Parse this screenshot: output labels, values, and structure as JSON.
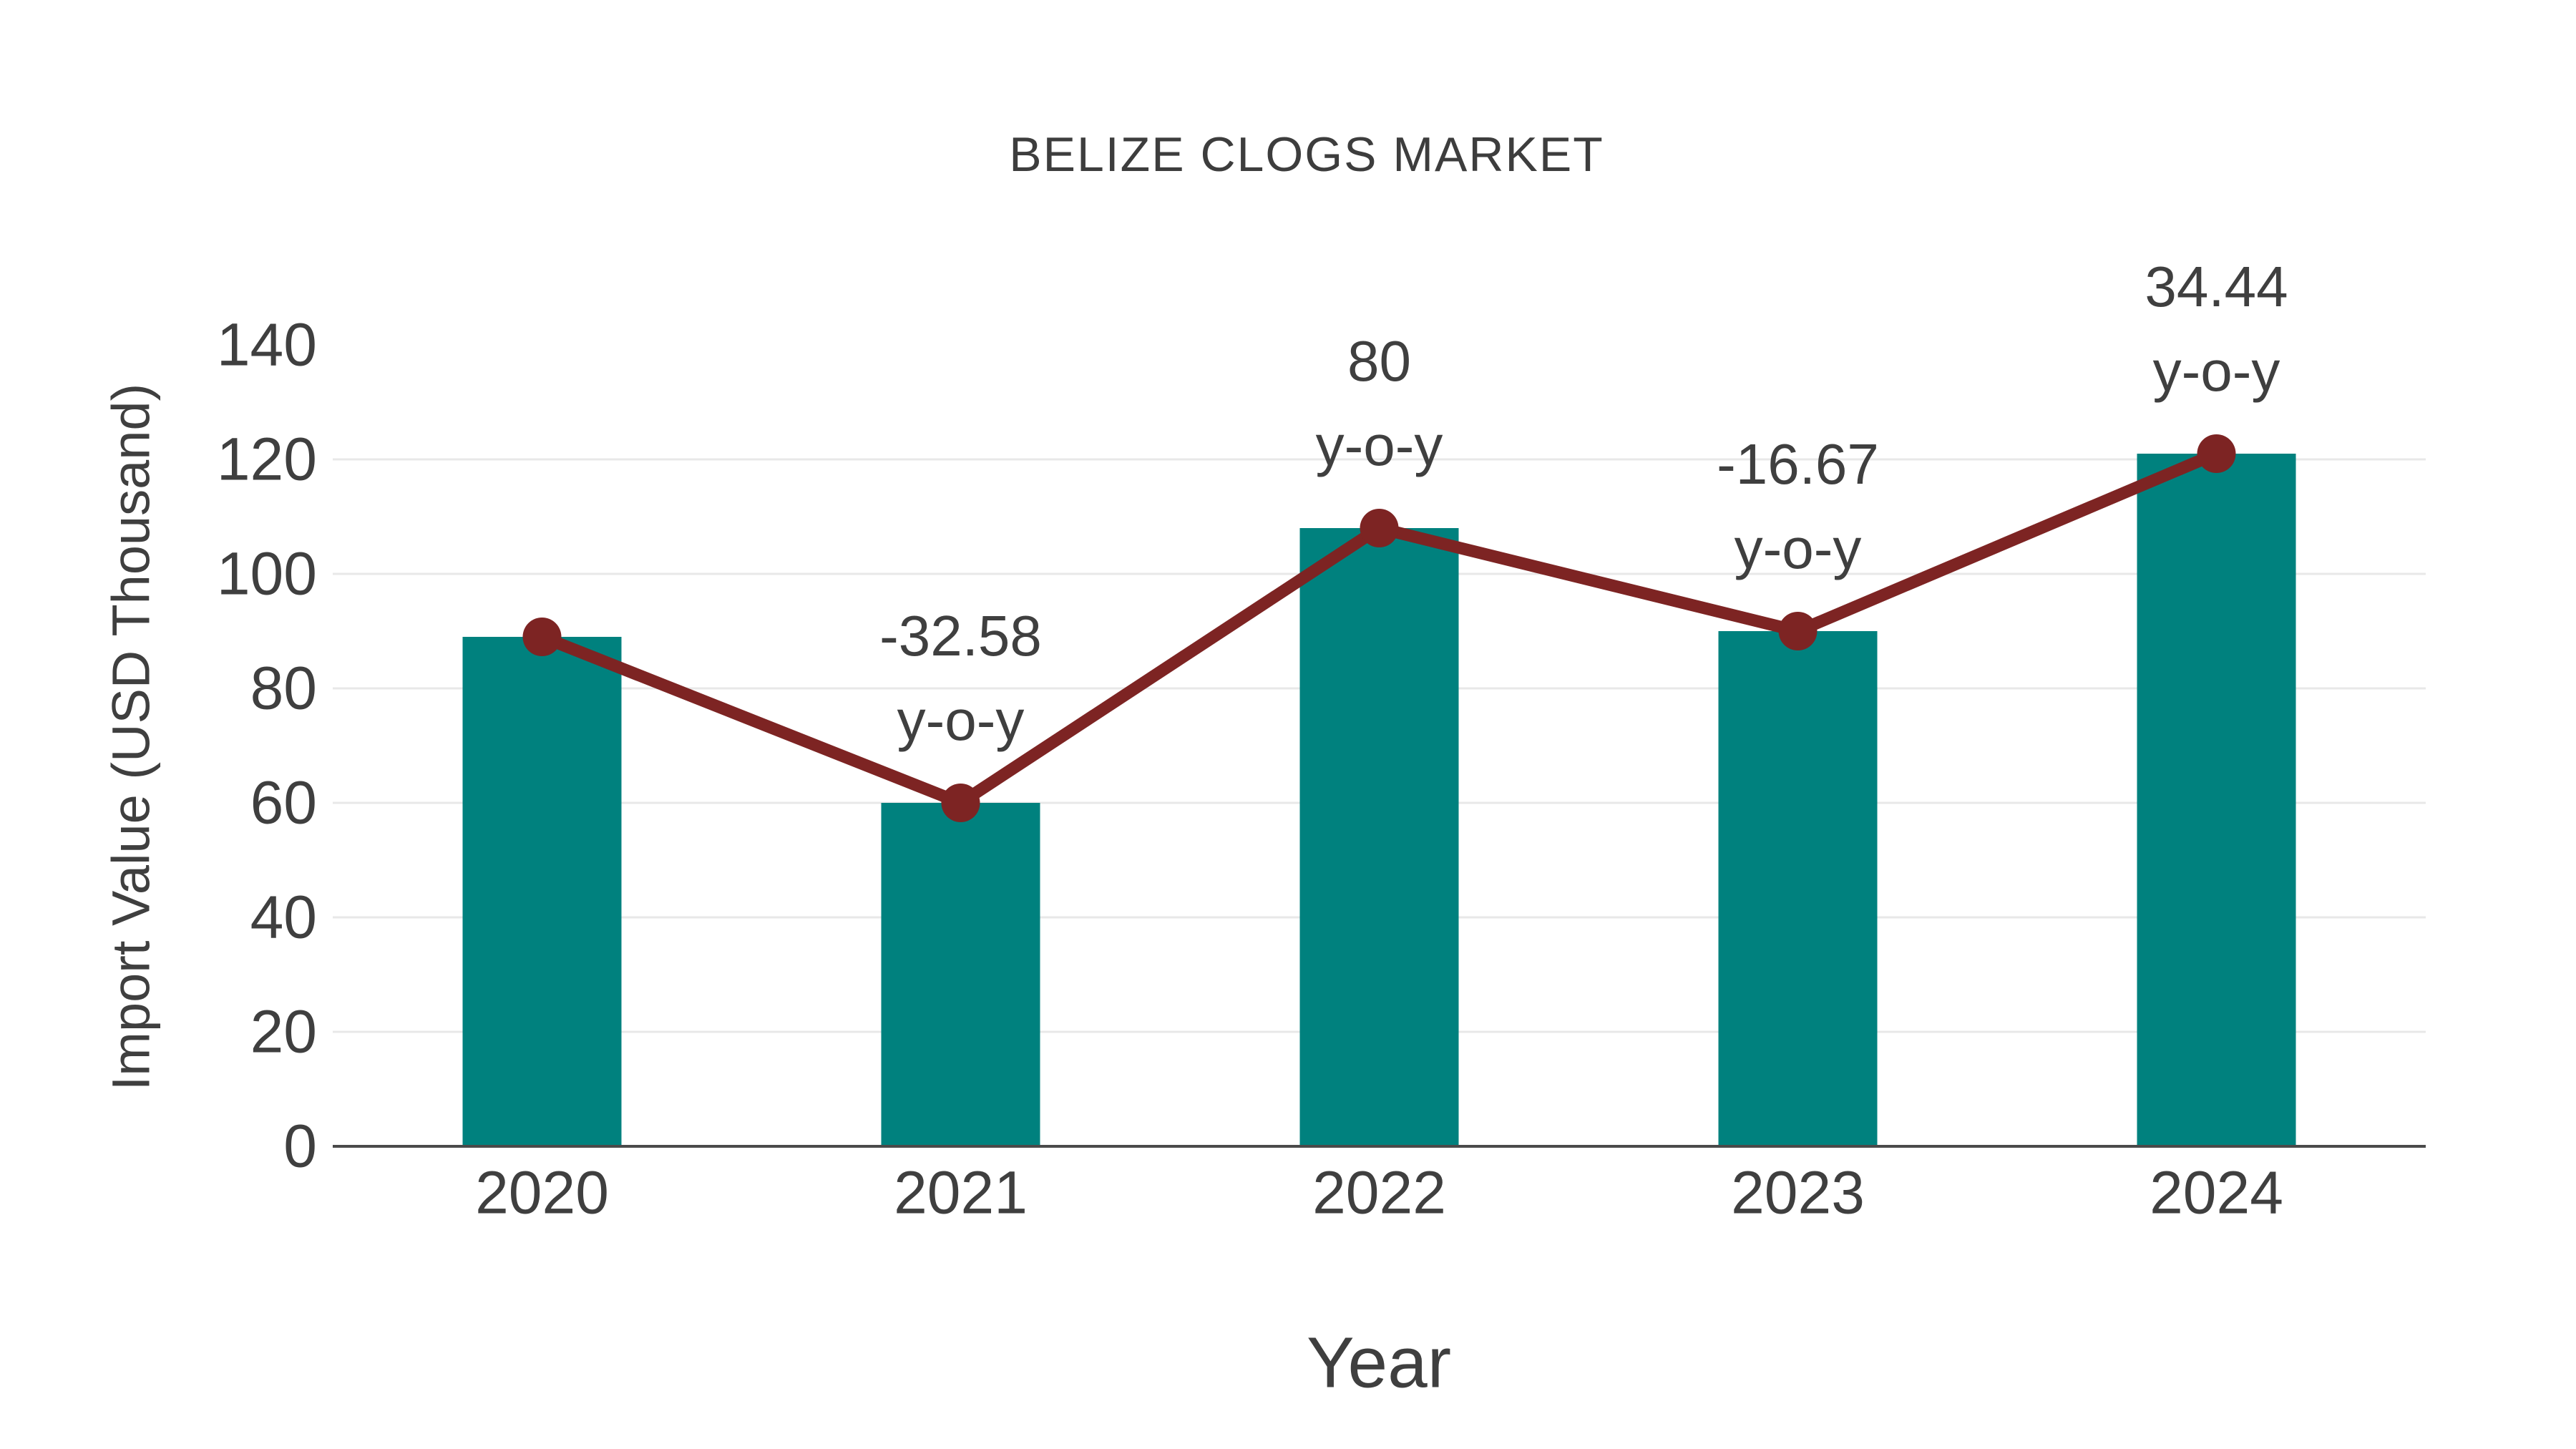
{
  "chart_data": {
    "type": "bar",
    "title": "BELIZE CLOGS MARKET",
    "xlabel": "Year",
    "ylabel": "Import Value (USD Thousand)",
    "categories": [
      "2020",
      "2021",
      "2022",
      "2023",
      "2024"
    ],
    "series": [
      {
        "name": "Import Value bars",
        "type": "bar",
        "color": "#00817E",
        "values": [
          89,
          60,
          108,
          90,
          121
        ]
      },
      {
        "name": "Import Value trend line",
        "type": "line",
        "color": "#7D2423",
        "values": [
          89,
          60,
          108,
          90,
          121
        ]
      }
    ],
    "annotations": [
      {
        "category": "2021",
        "lines": [
          "-32.58",
          "y-o-y"
        ]
      },
      {
        "category": "2022",
        "lines": [
          "80",
          "y-o-y"
        ]
      },
      {
        "category": "2023",
        "lines": [
          "-16.67",
          "y-o-y"
        ]
      },
      {
        "category": "2024",
        "lines": [
          "34.44",
          "y-o-y"
        ]
      }
    ],
    "ylim": [
      0,
      140
    ],
    "yticks": [
      0,
      20,
      40,
      60,
      80,
      100,
      120,
      140
    ],
    "grid": true,
    "legend": false,
    "colors": {
      "bar": "#00817E",
      "line": "#7D2423",
      "marker": "#7D2423",
      "text": "#3F3F3F",
      "axis": "#4A4A4A",
      "grid": "#E8E8E8",
      "background": "#FFFFFF"
    }
  }
}
